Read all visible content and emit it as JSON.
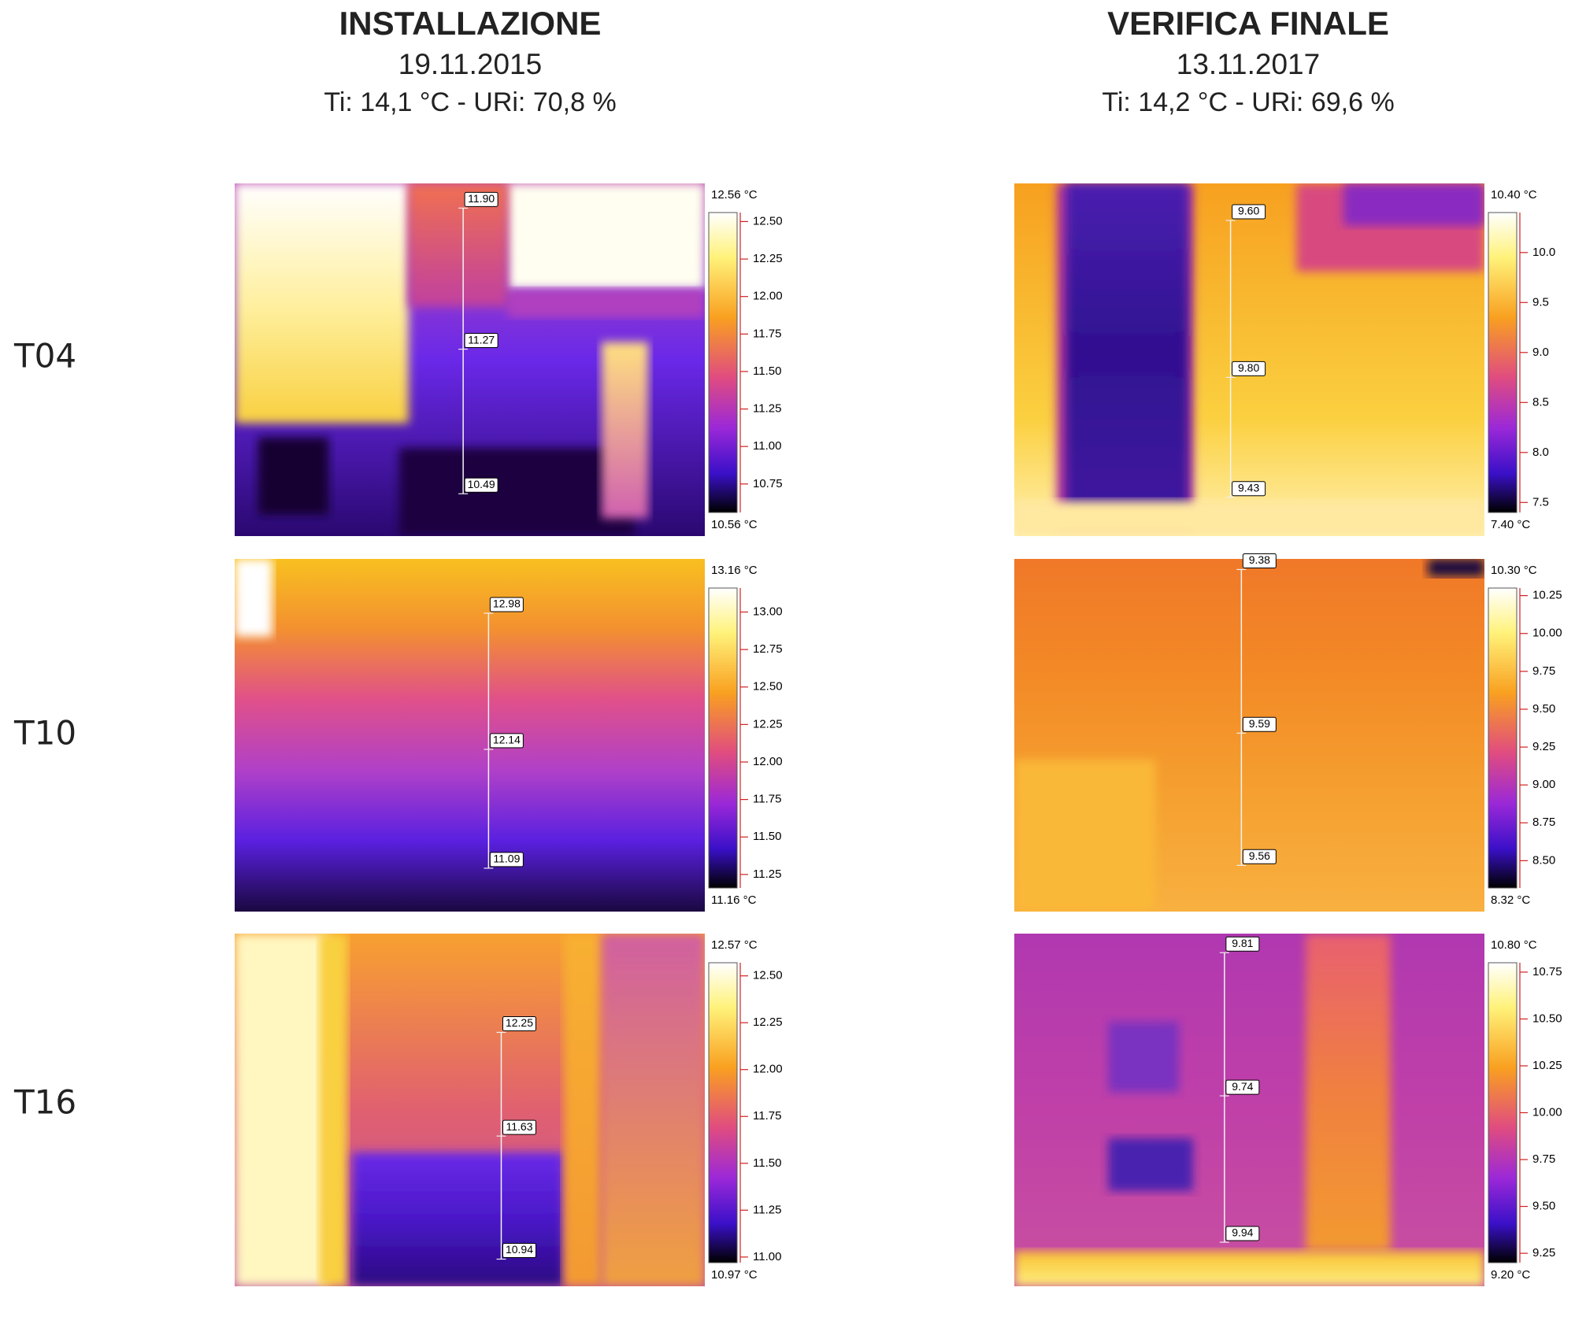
{
  "columns": [
    {
      "title": "INSTALLAZIONE",
      "date": "19.11.2015",
      "conditions": "Ti: 14,1 °C - URi: 70,8 %"
    },
    {
      "title": "VERIFICA FINALE",
      "date": "13.11.2017",
      "conditions": "Ti: 14,2 °C - URi: 69,6 %"
    }
  ],
  "rows": [
    {
      "label": "T04",
      "panels": [
        {
          "scale": {
            "max": "12.56 °C",
            "min": "10.56 °C",
            "ticks": [
              "12.50",
              "12.25",
              "12.00",
              "11.75",
              "11.50",
              "11.25",
              "11.00",
              "10.75"
            ]
          },
          "points": [
            "11.90",
            "11.27",
            "10.49"
          ]
        },
        {
          "scale": {
            "max": "10.40 °C",
            "min": "7.40 °C",
            "ticks": [
              "10.0",
              "9.5",
              "9.0",
              "8.5",
              "8.0",
              "7.5"
            ]
          },
          "points": [
            "9.60",
            "9.80",
            "9.43"
          ]
        }
      ]
    },
    {
      "label": "T10",
      "panels": [
        {
          "scale": {
            "max": "13.16 °C",
            "min": "11.16 °C",
            "ticks": [
              "13.00",
              "12.75",
              "12.50",
              "12.25",
              "12.00",
              "11.75",
              "11.50",
              "11.25"
            ]
          },
          "points": [
            "12.98",
            "12.14",
            "11.09"
          ]
        },
        {
          "scale": {
            "max": "10.30 °C",
            "min": "8.32 °C",
            "ticks": [
              "10.25",
              "10.00",
              "9.75",
              "9.50",
              "9.25",
              "9.00",
              "8.75",
              "8.50"
            ]
          },
          "points": [
            "9.38",
            "9.59",
            "9.56"
          ]
        }
      ]
    },
    {
      "label": "T16",
      "panels": [
        {
          "scale": {
            "max": "12.57 °C",
            "min": "10.97 °C",
            "ticks": [
              "12.50",
              "12.25",
              "12.00",
              "11.75",
              "11.50",
              "11.25",
              "11.00"
            ]
          },
          "points": [
            "12.25",
            "11.63",
            "10.94"
          ]
        },
        {
          "scale": {
            "max": "10.80 °C",
            "min": "9.20 °C",
            "ticks": [
              "10.75",
              "10.50",
              "10.25",
              "10.00",
              "9.75",
              "9.50",
              "9.25"
            ]
          },
          "points": [
            "9.81",
            "9.74",
            "9.94"
          ]
        }
      ]
    }
  ]
}
